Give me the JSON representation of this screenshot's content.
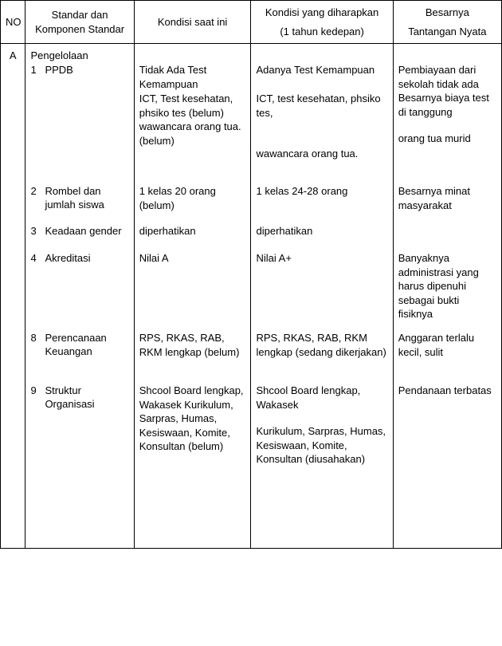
{
  "header": {
    "no": "NO",
    "standar": "Standar dan Komponen Standar",
    "kondisi_saat_ini": "Kondisi saat ini",
    "kondisi_harapkan_top": "Kondisi yang diharapkan",
    "kondisi_harapkan_sub": "(1 tahun kedepan)",
    "besarnya_top": "Besarnya",
    "besarnya_sub": "Tantangan Nyata"
  },
  "section": {
    "letter": "A",
    "title": "Pengelolaan"
  },
  "items": {
    "n1": "1",
    "t1": "PPDB",
    "n2": "2",
    "t2": "Rombel dan jumlah siswa",
    "n3": "3",
    "t3": "Keadaan gender",
    "n4": "4",
    "t4": "Akreditasi",
    "n8": "8",
    "t8": "Perencanaan Keuangan",
    "n9": "9",
    "t9": "Struktur Organisasi"
  },
  "now": {
    "r1a": "Tidak Ada Test Kemampuan",
    "r1b": "ICT, Test kesehatan, phsiko tes (belum) wawancara orang tua. (belum)",
    "r2": "1 kelas 20 orang (belum)",
    "r3": "diperhatikan",
    "r4": "Nilai A",
    "r8": "RPS, RKAS, RAB, RKM lengkap (belum)",
    "r9": "Shcool Board lengkap, Wakasek Kurikulum, Sarpras, Humas, Kesiswaan, Komite, Konsultan (belum)"
  },
  "exp": {
    "r1a": "Adanya Test Kemampuan",
    "r1b": "ICT, test kesehatan, phsiko tes,",
    "r1c": "wawancara orang tua.",
    "r2": "1 kelas 24-28 orang",
    "r3": "diperhatikan",
    "r4": "Nilai A+",
    "r8": "RPS, RKAS, RAB, RKM lengkap (sedang dikerjakan)",
    "r9a": "Shcool Board lengkap, Wakasek",
    "r9b": "Kurikulum, Sarpras, Humas, Kesiswaan, Komite, Konsultan (diusahakan)"
  },
  "chal": {
    "r1a": "Pembiayaan dari sekolah tidak ada Besarnya biaya test di tanggung",
    "r1b": "orang tua murid",
    "r2": "Besarnya minat masyarakat",
    "r4": "Banyaknya administrasi yang harus dipenuhi sebagai bukti fisiknya",
    "r8": "Anggaran terlalu kecil, sulit",
    "r9": "Pendanaan terbatas"
  },
  "heights": {
    "h1a": 36,
    "h1b": 116,
    "h2": 50,
    "h3": 34,
    "h4": 100,
    "h8": 66,
    "h9": 200
  }
}
